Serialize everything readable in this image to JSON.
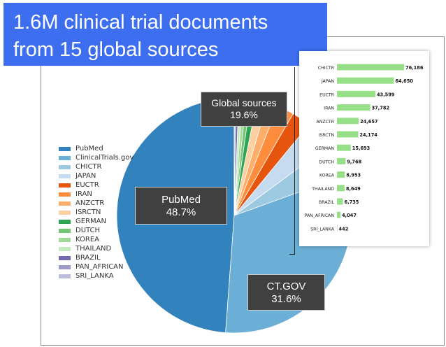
{
  "banner": {
    "line1": "1.6M clinical trial documents",
    "line2": "from 15 global sources"
  },
  "colors": {
    "banner": "#3d6ef0",
    "bar": "#98df8a",
    "callout": "#404040"
  },
  "callouts": {
    "pubmed_label": "PubMed",
    "pubmed_pct": "48.7%",
    "ctgov_label": "CT.GOV",
    "ctgov_pct": "31.6%",
    "global_label": "Global sources",
    "global_pct": "19.6%"
  },
  "chart_data": [
    {
      "type": "pie",
      "legend_position": "left",
      "slices": [
        {
          "name": "PubMed",
          "value": 48.7,
          "color": "#3182bd"
        },
        {
          "name": "ClinicalTrials.gov",
          "value": 31.6,
          "color": "#6baed6"
        },
        {
          "name": "CHICTR",
          "value": 4.6,
          "color": "#9ecae1"
        },
        {
          "name": "JAPAN",
          "value": 3.9,
          "color": "#c6dbef"
        },
        {
          "name": "EUCTR",
          "value": 2.6,
          "color": "#e6550d"
        },
        {
          "name": "IRAN",
          "value": 2.3,
          "color": "#fd8d3c"
        },
        {
          "name": "ANZCTR",
          "value": 1.5,
          "color": "#fdae6b"
        },
        {
          "name": "ISRCTN",
          "value": 1.4,
          "color": "#fdd0a2"
        },
        {
          "name": "GERMAN",
          "value": 0.9,
          "color": "#31a354"
        },
        {
          "name": "DUTCH",
          "value": 0.6,
          "color": "#74c476"
        },
        {
          "name": "KOREA",
          "value": 0.5,
          "color": "#a1d99b"
        },
        {
          "name": "THAILAND",
          "value": 0.5,
          "color": "#c7e9c0"
        },
        {
          "name": "BRAZIL",
          "value": 0.4,
          "color": "#756bb1"
        },
        {
          "name": "PAN_AFRICAN",
          "value": 0.2,
          "color": "#9e9ac8"
        },
        {
          "name": "SRI_LANKA",
          "value": 0.03,
          "color": "#bcbddc"
        }
      ]
    },
    {
      "type": "bar",
      "orientation": "horizontal",
      "categories": [
        "CHICTR",
        "JAPAN",
        "EUCTR",
        "IRAN",
        "ANZCTR",
        "ISRCTN",
        "GERMAN",
        "DUTCH",
        "KOREA",
        "THAILAND",
        "BRAZIL",
        "PAN_AFRICAN",
        "SRI_LANKA"
      ],
      "values": [
        76186,
        64650,
        43599,
        37782,
        24657,
        24174,
        15693,
        9768,
        8953,
        8649,
        6735,
        4047,
        442
      ],
      "value_labels": [
        "76,186",
        "64,650",
        "43,599",
        "37,782",
        "24,657",
        "24,174",
        "15,693",
        "9,768",
        "8,953",
        "8,649",
        "6,735",
        "4,047",
        "442"
      ]
    }
  ]
}
